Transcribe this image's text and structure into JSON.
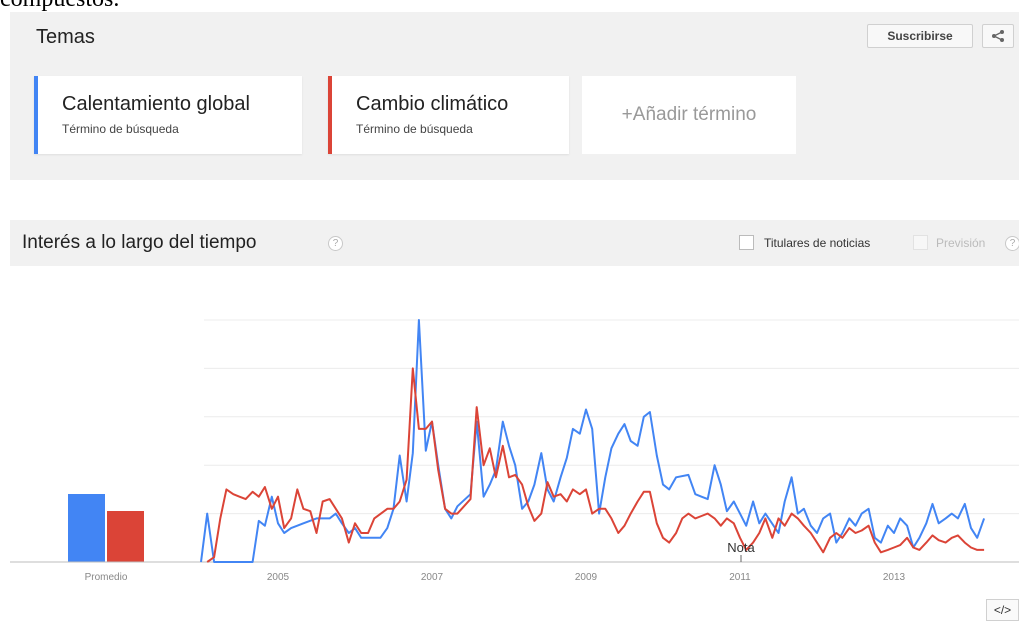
{
  "cut_text": "compuestos.",
  "temas": {
    "title": "Temas",
    "subscribe_label": "Suscribirse",
    "terms": [
      {
        "name": "Calentamiento global",
        "type": "Término de búsqueda",
        "color": "#4285f4"
      },
      {
        "name": "Cambio climático",
        "type": "Término de búsqueda",
        "color": "#db4437"
      }
    ],
    "add_label": "+Añadir término"
  },
  "interest": {
    "title": "Interés a lo largo del tiempo",
    "help": "?",
    "news_label": "Titulares de noticias",
    "forecast_label": "Previsión",
    "note_label": "Nota",
    "embed_label": "</>"
  },
  "chart_data": {
    "type": "line",
    "average_label": "Promedio",
    "averages": [
      28,
      21
    ],
    "x_ticks": [
      "2005",
      "2007",
      "2009",
      "2011",
      "2013"
    ],
    "ylim": [
      0,
      100
    ],
    "grid": true,
    "series": [
      {
        "name": "Calentamiento global",
        "color": "#4285f4",
        "points": [
          [
            2004.0,
            0
          ],
          [
            2004.08,
            20
          ],
          [
            2004.17,
            0
          ],
          [
            2004.33,
            0
          ],
          [
            2004.5,
            0
          ],
          [
            2004.67,
            0
          ],
          [
            2004.75,
            17
          ],
          [
            2004.83,
            15
          ],
          [
            2004.92,
            27
          ],
          [
            2005.0,
            16
          ],
          [
            2005.08,
            12
          ],
          [
            2005.17,
            14
          ],
          [
            2005.25,
            15
          ],
          [
            2005.33,
            16
          ],
          [
            2005.5,
            18
          ],
          [
            2005.67,
            18
          ],
          [
            2005.75,
            20
          ],
          [
            2005.83,
            16
          ],
          [
            2005.92,
            12
          ],
          [
            2006.0,
            14
          ],
          [
            2006.08,
            10
          ],
          [
            2006.17,
            10
          ],
          [
            2006.33,
            10
          ],
          [
            2006.42,
            14
          ],
          [
            2006.5,
            22
          ],
          [
            2006.58,
            44
          ],
          [
            2006.67,
            25
          ],
          [
            2006.75,
            45
          ],
          [
            2006.83,
            100
          ],
          [
            2006.92,
            46
          ],
          [
            2007.0,
            58
          ],
          [
            2007.08,
            40
          ],
          [
            2007.17,
            22
          ],
          [
            2007.25,
            18
          ],
          [
            2007.33,
            23
          ],
          [
            2007.5,
            28
          ],
          [
            2007.58,
            58
          ],
          [
            2007.67,
            27
          ],
          [
            2007.75,
            32
          ],
          [
            2007.83,
            38
          ],
          [
            2007.92,
            58
          ],
          [
            2008.0,
            48
          ],
          [
            2008.08,
            40
          ],
          [
            2008.17,
            22
          ],
          [
            2008.25,
            25
          ],
          [
            2008.33,
            32
          ],
          [
            2008.42,
            45
          ],
          [
            2008.5,
            30
          ],
          [
            2008.58,
            25
          ],
          [
            2008.67,
            35
          ],
          [
            2008.75,
            43
          ],
          [
            2008.83,
            55
          ],
          [
            2008.92,
            53
          ],
          [
            2009.0,
            63
          ],
          [
            2009.08,
            55
          ],
          [
            2009.17,
            20
          ],
          [
            2009.25,
            35
          ],
          [
            2009.33,
            47
          ],
          [
            2009.42,
            53
          ],
          [
            2009.5,
            57
          ],
          [
            2009.58,
            50
          ],
          [
            2009.67,
            48
          ],
          [
            2009.75,
            60
          ],
          [
            2009.83,
            62
          ],
          [
            2009.92,
            44
          ],
          [
            2010.0,
            32
          ],
          [
            2010.08,
            30
          ],
          [
            2010.17,
            35
          ],
          [
            2010.33,
            36
          ],
          [
            2010.42,
            28
          ],
          [
            2010.5,
            27
          ],
          [
            2010.58,
            26
          ],
          [
            2010.67,
            40
          ],
          [
            2010.75,
            32
          ],
          [
            2010.83,
            21
          ],
          [
            2010.92,
            25
          ],
          [
            2011.0,
            20
          ],
          [
            2011.08,
            15
          ],
          [
            2011.17,
            25
          ],
          [
            2011.25,
            16
          ],
          [
            2011.33,
            20
          ],
          [
            2011.5,
            12
          ],
          [
            2011.58,
            25
          ],
          [
            2011.67,
            35
          ],
          [
            2011.75,
            20
          ],
          [
            2011.83,
            22
          ],
          [
            2011.92,
            15
          ],
          [
            2012.0,
            12
          ],
          [
            2012.08,
            18
          ],
          [
            2012.17,
            20
          ],
          [
            2012.25,
            8
          ],
          [
            2012.33,
            12
          ],
          [
            2012.42,
            18
          ],
          [
            2012.5,
            15
          ],
          [
            2012.58,
            20
          ],
          [
            2012.67,
            22
          ],
          [
            2012.75,
            10
          ],
          [
            2012.83,
            8
          ],
          [
            2012.92,
            15
          ],
          [
            2013.0,
            12
          ],
          [
            2013.08,
            18
          ],
          [
            2013.17,
            15
          ],
          [
            2013.25,
            6
          ],
          [
            2013.33,
            10
          ],
          [
            2013.42,
            16
          ],
          [
            2013.5,
            24
          ],
          [
            2013.58,
            16
          ],
          [
            2013.67,
            18
          ],
          [
            2013.75,
            20
          ],
          [
            2013.83,
            18
          ],
          [
            2013.92,
            24
          ],
          [
            2014.0,
            14
          ],
          [
            2014.08,
            10
          ],
          [
            2014.17,
            18
          ]
        ]
      },
      {
        "name": "Cambio climático",
        "color": "#db4437",
        "points": [
          [
            2004.08,
            0
          ],
          [
            2004.17,
            2
          ],
          [
            2004.25,
            18
          ],
          [
            2004.33,
            30
          ],
          [
            2004.42,
            28
          ],
          [
            2004.5,
            27
          ],
          [
            2004.58,
            26
          ],
          [
            2004.67,
            29
          ],
          [
            2004.75,
            27
          ],
          [
            2004.83,
            31
          ],
          [
            2004.92,
            22
          ],
          [
            2005.0,
            27
          ],
          [
            2005.08,
            14
          ],
          [
            2005.17,
            18
          ],
          [
            2005.25,
            30
          ],
          [
            2005.33,
            22
          ],
          [
            2005.42,
            21
          ],
          [
            2005.5,
            12
          ],
          [
            2005.58,
            25
          ],
          [
            2005.67,
            26
          ],
          [
            2005.75,
            22
          ],
          [
            2005.83,
            18
          ],
          [
            2005.92,
            8
          ],
          [
            2006.0,
            16
          ],
          [
            2006.08,
            12
          ],
          [
            2006.17,
            12
          ],
          [
            2006.25,
            18
          ],
          [
            2006.42,
            22
          ],
          [
            2006.5,
            22
          ],
          [
            2006.58,
            25
          ],
          [
            2006.67,
            34
          ],
          [
            2006.75,
            80
          ],
          [
            2006.83,
            55
          ],
          [
            2006.92,
            55
          ],
          [
            2007.0,
            58
          ],
          [
            2007.08,
            38
          ],
          [
            2007.17,
            22
          ],
          [
            2007.25,
            20
          ],
          [
            2007.33,
            20
          ],
          [
            2007.5,
            26
          ],
          [
            2007.58,
            64
          ],
          [
            2007.67,
            40
          ],
          [
            2007.75,
            47
          ],
          [
            2007.83,
            35
          ],
          [
            2007.92,
            48
          ],
          [
            2008.0,
            35
          ],
          [
            2008.08,
            36
          ],
          [
            2008.17,
            32
          ],
          [
            2008.25,
            23
          ],
          [
            2008.33,
            17
          ],
          [
            2008.42,
            20
          ],
          [
            2008.5,
            33
          ],
          [
            2008.58,
            27
          ],
          [
            2008.67,
            28
          ],
          [
            2008.75,
            25
          ],
          [
            2008.83,
            30
          ],
          [
            2008.92,
            28
          ],
          [
            2009.0,
            30
          ],
          [
            2009.08,
            20
          ],
          [
            2009.17,
            22
          ],
          [
            2009.25,
            22
          ],
          [
            2009.33,
            18
          ],
          [
            2009.42,
            12
          ],
          [
            2009.5,
            15
          ],
          [
            2009.58,
            20
          ],
          [
            2009.67,
            25
          ],
          [
            2009.75,
            29
          ],
          [
            2009.83,
            29
          ],
          [
            2009.92,
            16
          ],
          [
            2010.0,
            10
          ],
          [
            2010.08,
            8
          ],
          [
            2010.17,
            12
          ],
          [
            2010.25,
            18
          ],
          [
            2010.33,
            20
          ],
          [
            2010.42,
            18
          ],
          [
            2010.5,
            19
          ],
          [
            2010.58,
            20
          ],
          [
            2010.67,
            18
          ],
          [
            2010.75,
            15
          ],
          [
            2010.83,
            18
          ],
          [
            2010.92,
            16
          ],
          [
            2011.0,
            10
          ],
          [
            2011.08,
            5
          ],
          [
            2011.17,
            8
          ],
          [
            2011.25,
            12
          ],
          [
            2011.33,
            18
          ],
          [
            2011.42,
            10
          ],
          [
            2011.5,
            18
          ],
          [
            2011.58,
            15
          ],
          [
            2011.67,
            20
          ],
          [
            2011.75,
            18
          ],
          [
            2011.83,
            15
          ],
          [
            2011.92,
            12
          ],
          [
            2012.0,
            8
          ],
          [
            2012.08,
            4
          ],
          [
            2012.17,
            10
          ],
          [
            2012.25,
            12
          ],
          [
            2012.33,
            10
          ],
          [
            2012.42,
            14
          ],
          [
            2012.5,
            12
          ],
          [
            2012.58,
            13
          ],
          [
            2012.67,
            15
          ],
          [
            2012.75,
            8
          ],
          [
            2012.83,
            4
          ],
          [
            2012.92,
            5
          ],
          [
            2013.0,
            6
          ],
          [
            2013.08,
            7
          ],
          [
            2013.17,
            10
          ],
          [
            2013.25,
            6
          ],
          [
            2013.33,
            5
          ],
          [
            2013.42,
            8
          ],
          [
            2013.5,
            11
          ],
          [
            2013.58,
            9
          ],
          [
            2013.67,
            8
          ],
          [
            2013.75,
            10
          ],
          [
            2013.83,
            11
          ],
          [
            2013.92,
            8
          ],
          [
            2014.0,
            6
          ],
          [
            2014.08,
            5
          ],
          [
            2014.17,
            5
          ]
        ]
      }
    ]
  }
}
